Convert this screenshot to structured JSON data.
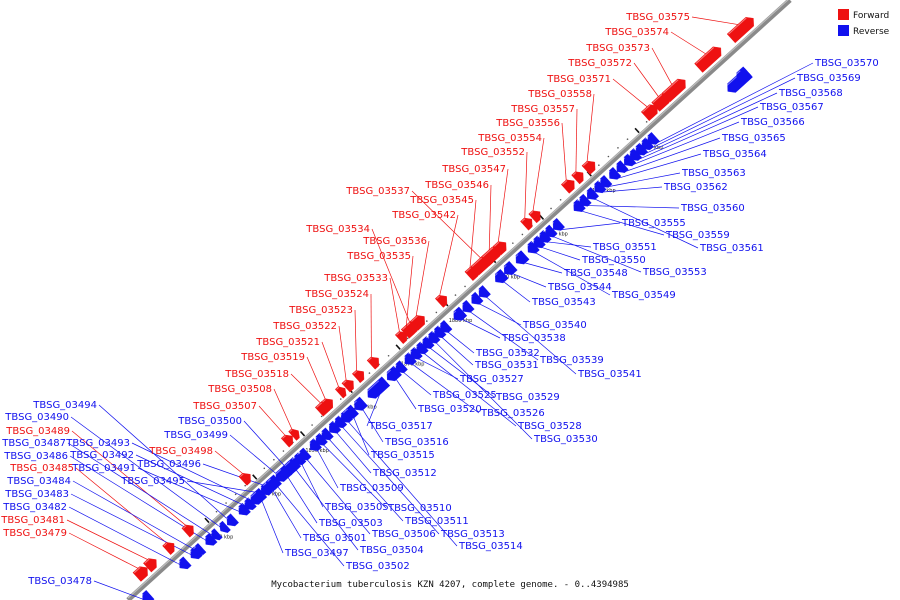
{
  "caption": "Mycobacterium tuberculosis KZN 4207, complete genome. - 0..4394985",
  "legend": [
    {
      "label": "Forward",
      "color": "#ee1111"
    },
    {
      "label": "Reverse",
      "color": "#1111ee"
    }
  ],
  "colors": {
    "forward": "#ee1111",
    "reverse": "#1111ee",
    "axis": "#888888"
  },
  "ticks": [
    "1830 kbp",
    "1840 kbp",
    "1850 kbp",
    "1860 kbp",
    "1870 kbp",
    "1880 kbp",
    "1890 kbp",
    "1900 kbp",
    "1910 kbp",
    "1920 kbp"
  ],
  "forward_genes": [
    "TBSG_03479",
    "TBSG_03481",
    "TBSG_03485",
    "TBSG_03489",
    "TBSG_03498",
    "TBSG_03507",
    "TBSG_03508",
    "TBSG_03518",
    "TBSG_03519",
    "TBSG_03521",
    "TBSG_03522",
    "TBSG_03523",
    "TBSG_03524",
    "TBSG_03533",
    "TBSG_03535",
    "TBSG_03536",
    "TBSG_03534",
    "TBSG_03542",
    "TBSG_03545",
    "TBSG_03537",
    "TBSG_03546",
    "TBSG_03547",
    "TBSG_03552",
    "TBSG_03554",
    "TBSG_03556",
    "TBSG_03557",
    "TBSG_03558",
    "TBSG_03571",
    "TBSG_03572",
    "TBSG_03573",
    "TBSG_03574",
    "TBSG_03575"
  ],
  "reverse_genes": [
    "TBSG_03478",
    "TBSG_03482",
    "TBSG_03483",
    "TBSG_03484",
    "TBSG_03486",
    "TBSG_03487",
    "TBSG_03490",
    "TBSG_03494",
    "TBSG_03491",
    "TBSG_03492",
    "TBSG_03493",
    "TBSG_03495",
    "TBSG_03496",
    "TBSG_03499",
    "TBSG_03500",
    "TBSG_03497",
    "TBSG_03501",
    "TBSG_03502",
    "TBSG_03503",
    "TBSG_03504",
    "TBSG_03505",
    "TBSG_03506",
    "TBSG_03509",
    "TBSG_03510",
    "TBSG_03511",
    "TBSG_03512",
    "TBSG_03513",
    "TBSG_03514",
    "TBSG_03515",
    "TBSG_03516",
    "TBSG_03517",
    "TBSG_03520",
    "TBSG_03525",
    "TBSG_03526",
    "TBSG_03527",
    "TBSG_03528",
    "TBSG_03529",
    "TBSG_03530",
    "TBSG_03531",
    "TBSG_03532",
    "TBSG_03538",
    "TBSG_03539",
    "TBSG_03540",
    "TBSG_03541",
    "TBSG_03543",
    "TBSG_03544",
    "TBSG_03548",
    "TBSG_03549",
    "TBSG_03550",
    "TBSG_03551",
    "TBSG_03553",
    "TBSG_03555",
    "TBSG_03559",
    "TBSG_03560",
    "TBSG_03561",
    "TBSG_03562",
    "TBSG_03563",
    "TBSG_03564",
    "TBSG_03565",
    "TBSG_03566",
    "TBSG_03567",
    "TBSG_03568",
    "TBSG_03569",
    "TBSG_03570"
  ]
}
